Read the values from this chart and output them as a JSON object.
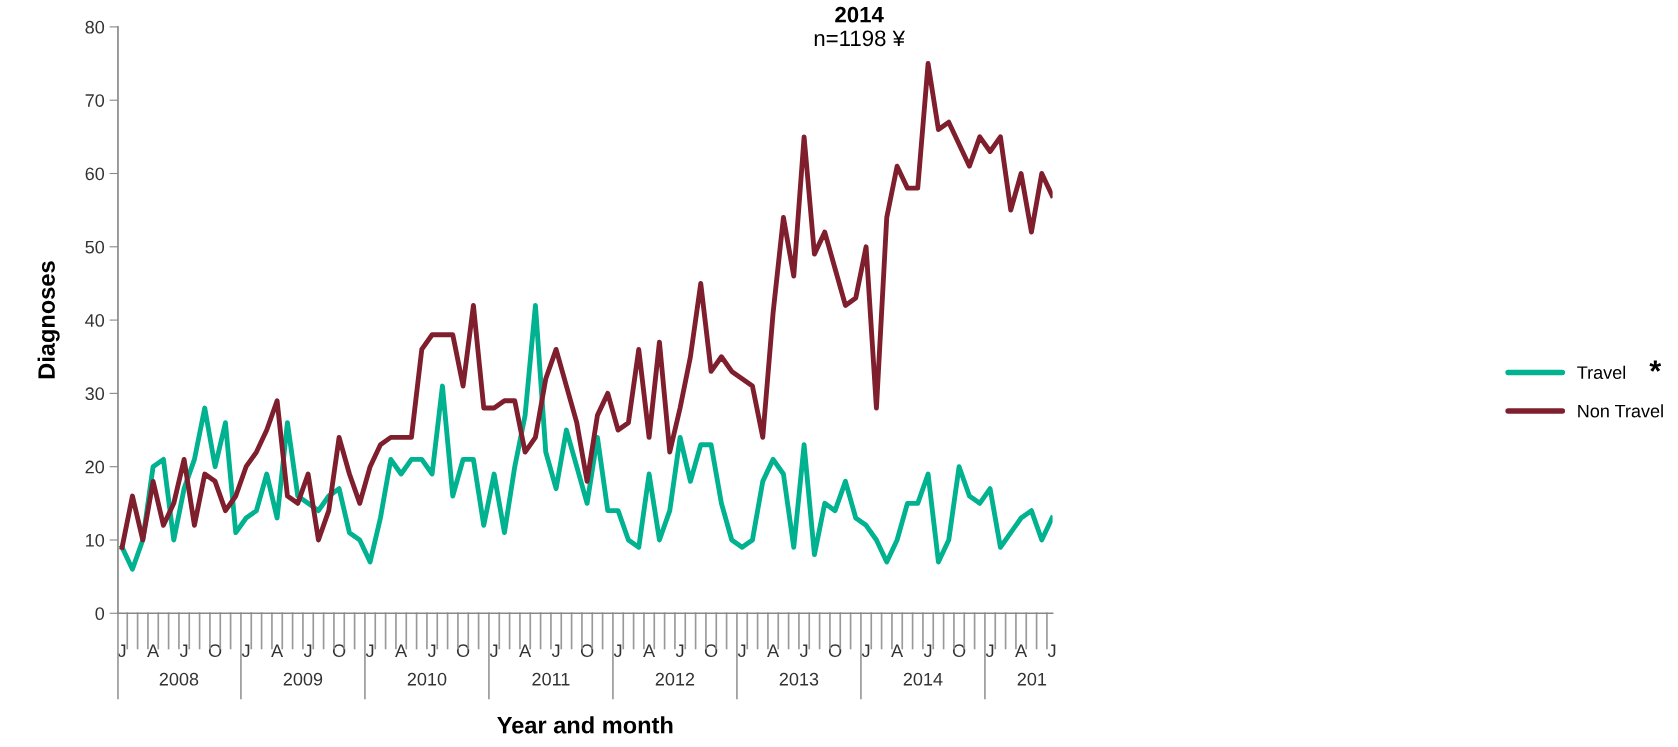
{
  "chart_data": {
    "type": "line",
    "xlabel": "Year and month",
    "ylabel": "Diagnoses",
    "categories": [
      "J",
      null,
      null,
      "A",
      null,
      null,
      "J",
      null,
      null,
      "O",
      null,
      null,
      "J",
      null,
      null,
      "A",
      null,
      null,
      "J",
      null,
      null,
      "O",
      null,
      null,
      "J",
      null,
      null,
      "A",
      null,
      null,
      "J",
      null,
      null,
      "O",
      null,
      null,
      "J",
      null,
      null,
      "A",
      null,
      null,
      "J",
      null,
      null,
      "O",
      null,
      null,
      "J",
      null,
      null,
      "A",
      null,
      null,
      "J",
      null,
      null,
      "O",
      null,
      null,
      "J",
      null,
      null,
      "A",
      null,
      null,
      "J",
      null,
      null,
      "O",
      null,
      null,
      "J",
      null,
      null,
      "A",
      null,
      null,
      "J",
      null,
      null,
      "O",
      null,
      null,
      "J",
      null,
      null,
      "A",
      null,
      null,
      "J"
    ],
    "series": [
      {
        "name": "Travel",
        "color": "#00b28f",
        "values": [
          9,
          6,
          10,
          20,
          21,
          10,
          17,
          21,
          28,
          20,
          26,
          11,
          13,
          14,
          19,
          13,
          26,
          16,
          15,
          14,
          16,
          17,
          11,
          10,
          7,
          13,
          21,
          19,
          21,
          21,
          19,
          31,
          16,
          21,
          21,
          12,
          19,
          11,
          20,
          27,
          42,
          22,
          17,
          25,
          20,
          15,
          24,
          14,
          14,
          10,
          9,
          19,
          10,
          14,
          24,
          18,
          23,
          23,
          15,
          10,
          9,
          10,
          18,
          21,
          19,
          9,
          23,
          8,
          15,
          14,
          18,
          13,
          12,
          10,
          7,
          10,
          15,
          15,
          19,
          7,
          10,
          20,
          16,
          15,
          17,
          9,
          11,
          13,
          14,
          10,
          13
        ]
      },
      {
        "name": "Non Travel",
        "color": "#7f1f2e",
        "values": [
          9,
          16,
          10,
          18,
          12,
          15,
          21,
          12,
          19,
          18,
          14,
          16,
          20,
          22,
          25,
          29,
          16,
          15,
          19,
          10,
          14,
          24,
          19,
          15,
          20,
          23,
          24,
          24,
          24,
          36,
          38,
          38,
          38,
          31,
          42,
          28,
          28,
          29,
          29,
          22,
          24,
          32,
          36,
          31,
          26,
          18,
          27,
          30,
          25,
          26,
          36,
          24,
          37,
          22,
          28,
          35,
          45,
          33,
          35,
          33,
          32,
          31,
          24,
          41,
          54,
          46,
          65,
          49,
          52,
          47,
          42,
          43,
          50,
          28,
          54,
          61,
          58,
          58,
          75,
          66,
          67,
          64,
          61,
          65,
          63,
          65,
          55,
          60,
          52,
          60,
          57
        ]
      }
    ],
    "ylim": [
      0,
      80
    ],
    "yticks": [
      0,
      10,
      20,
      30,
      40,
      50,
      60,
      70,
      80
    ],
    "grid": false,
    "legend": "right",
    "marker": "none",
    "line_style": "solid",
    "annotations": [
      "2014",
      "n=1198 ¥",
      "*",
      "2008",
      "2009",
      "2010",
      "2011",
      "2012",
      "2013",
      "2014",
      "201"
    ]
  }
}
